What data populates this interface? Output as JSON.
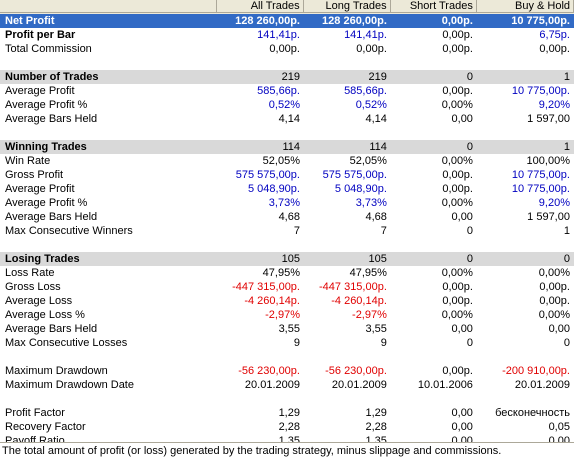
{
  "columns": [
    "",
    "All Trades",
    "Long Trades",
    "Short Trades",
    "Buy & Hold"
  ],
  "rows": [
    {
      "type": "sel",
      "label": "Net Profit",
      "v": [
        "128 260,00р.",
        "128 260,00р.",
        "0,00р.",
        "10 775,00р."
      ],
      "cls": [
        "",
        "",
        "",
        ""
      ]
    },
    {
      "type": "bold",
      "label": "Profit per Bar",
      "v": [
        "141,41р.",
        "141,41р.",
        "0,00р.",
        "6,75р."
      ],
      "cls": [
        "blue",
        "blue",
        "",
        "blue"
      ]
    },
    {
      "type": "normal",
      "label": "Total Commission",
      "v": [
        "0,00р.",
        "0,00р.",
        "0,00р.",
        "0,00р."
      ],
      "cls": [
        "",
        "",
        "",
        ""
      ]
    },
    {
      "type": "gap"
    },
    {
      "type": "sec",
      "label": "Number of Trades",
      "v": [
        "219",
        "219",
        "0",
        "1"
      ],
      "cls": [
        "",
        "",
        "",
        ""
      ]
    },
    {
      "type": "normal",
      "label": "Average Profit",
      "v": [
        "585,66р.",
        "585,66р.",
        "0,00р.",
        "10 775,00р."
      ],
      "cls": [
        "blue",
        "blue",
        "",
        "blue"
      ]
    },
    {
      "type": "normal",
      "label": "Average Profit %",
      "v": [
        "0,52%",
        "0,52%",
        "0,00%",
        "9,20%"
      ],
      "cls": [
        "blue",
        "blue",
        "",
        "blue"
      ]
    },
    {
      "type": "normal",
      "label": "Average Bars Held",
      "v": [
        "4,14",
        "4,14",
        "0,00",
        "1 597,00"
      ],
      "cls": [
        "",
        "",
        "",
        ""
      ]
    },
    {
      "type": "gap"
    },
    {
      "type": "sec",
      "label": "Winning Trades",
      "v": [
        "114",
        "114",
        "0",
        "1"
      ],
      "cls": [
        "",
        "",
        "",
        ""
      ]
    },
    {
      "type": "normal",
      "label": "Win Rate",
      "v": [
        "52,05%",
        "52,05%",
        "0,00%",
        "100,00%"
      ],
      "cls": [
        "",
        "",
        "",
        ""
      ]
    },
    {
      "type": "normal",
      "label": "Gross Profit",
      "v": [
        "575 575,00р.",
        "575 575,00р.",
        "0,00р.",
        "10 775,00р."
      ],
      "cls": [
        "blue",
        "blue",
        "",
        "blue"
      ]
    },
    {
      "type": "normal",
      "label": "Average Profit",
      "v": [
        "5 048,90р.",
        "5 048,90р.",
        "0,00р.",
        "10 775,00р."
      ],
      "cls": [
        "blue",
        "blue",
        "",
        "blue"
      ]
    },
    {
      "type": "normal",
      "label": "Average Profit %",
      "v": [
        "3,73%",
        "3,73%",
        "0,00%",
        "9,20%"
      ],
      "cls": [
        "blue",
        "blue",
        "",
        "blue"
      ]
    },
    {
      "type": "normal",
      "label": "Average Bars Held",
      "v": [
        "4,68",
        "4,68",
        "0,00",
        "1 597,00"
      ],
      "cls": [
        "",
        "",
        "",
        ""
      ]
    },
    {
      "type": "normal",
      "label": "Max Consecutive Winners",
      "v": [
        "7",
        "7",
        "0",
        "1"
      ],
      "cls": [
        "",
        "",
        "",
        ""
      ]
    },
    {
      "type": "gap"
    },
    {
      "type": "sec",
      "label": "Losing Trades",
      "v": [
        "105",
        "105",
        "0",
        "0"
      ],
      "cls": [
        "",
        "",
        "",
        ""
      ]
    },
    {
      "type": "normal",
      "label": "Loss Rate",
      "v": [
        "47,95%",
        "47,95%",
        "0,00%",
        "0,00%"
      ],
      "cls": [
        "",
        "",
        "",
        ""
      ]
    },
    {
      "type": "normal",
      "label": "Gross Loss",
      "v": [
        "-447 315,00р.",
        "-447 315,00р.",
        "0,00р.",
        "0,00р."
      ],
      "cls": [
        "red",
        "red",
        "",
        ""
      ]
    },
    {
      "type": "normal",
      "label": "Average Loss",
      "v": [
        "-4 260,14р.",
        "-4 260,14р.",
        "0,00р.",
        "0,00р."
      ],
      "cls": [
        "red",
        "red",
        "",
        ""
      ]
    },
    {
      "type": "normal",
      "label": "Average Loss %",
      "v": [
        "-2,97%",
        "-2,97%",
        "0,00%",
        "0,00%"
      ],
      "cls": [
        "red",
        "red",
        "",
        ""
      ]
    },
    {
      "type": "normal",
      "label": "Average Bars Held",
      "v": [
        "3,55",
        "3,55",
        "0,00",
        "0,00"
      ],
      "cls": [
        "",
        "",
        "",
        ""
      ]
    },
    {
      "type": "normal",
      "label": "Max Consecutive Losses",
      "v": [
        "9",
        "9",
        "0",
        "0"
      ],
      "cls": [
        "",
        "",
        "",
        ""
      ]
    },
    {
      "type": "gap"
    },
    {
      "type": "normal",
      "label": "Maximum Drawdown",
      "v": [
        "-56 230,00р.",
        "-56 230,00р.",
        "0,00р.",
        "-200 910,00р."
      ],
      "cls": [
        "red",
        "red",
        "",
        "red"
      ]
    },
    {
      "type": "normal",
      "label": "Maximum Drawdown Date",
      "v": [
        "20.01.2009",
        "20.01.2009",
        "10.01.2006",
        "20.01.2009"
      ],
      "cls": [
        "",
        "",
        "",
        ""
      ]
    },
    {
      "type": "gap"
    },
    {
      "type": "normal",
      "label": "Profit Factor",
      "v": [
        "1,29",
        "1,29",
        "0,00",
        "бесконечность"
      ],
      "cls": [
        "",
        "",
        "",
        ""
      ]
    },
    {
      "type": "normal",
      "label": "Recovery Factor",
      "v": [
        "2,28",
        "2,28",
        "0,00",
        "0,05"
      ],
      "cls": [
        "",
        "",
        "",
        ""
      ]
    },
    {
      "type": "normal",
      "label": "Payoff Ratio",
      "v": [
        "1,35",
        "1,35",
        "0,00",
        "0,00"
      ],
      "cls": [
        "",
        "",
        "",
        ""
      ]
    }
  ],
  "status": "The total amount of profit (or loss) generated by the trading strategy, minus slippage and commissions.",
  "colors": {
    "selected": "#316ac5",
    "section": "#d9d9d9",
    "positive": "#0000c0",
    "negative": "#e00000"
  }
}
